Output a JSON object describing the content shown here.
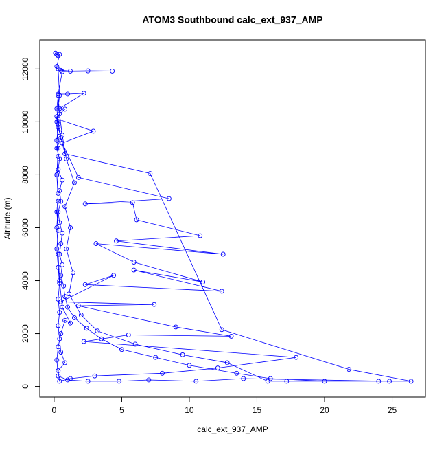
{
  "chart_data": {
    "type": "line",
    "markers": true,
    "title": "ATOM3 Southbound calc_ext_937_AMP",
    "x_label": "calc_ext_937_AMP",
    "y_label": "Altitude (m)",
    "color": "#0000ff",
    "xlim": [
      -1.06,
      27.46
    ],
    "ylim": [
      -400,
      13100
    ],
    "xticks": [
      0,
      5,
      10,
      15,
      20,
      25
    ],
    "yticks": [
      0,
      2000,
      4000,
      6000,
      8000,
      10000,
      12000
    ],
    "x": [
      0.2,
      0.3,
      0.1,
      0.4,
      0.2,
      0.5,
      1.2,
      2.5,
      4.3,
      0.6,
      0.3,
      1.0,
      2.2,
      0.4,
      0.8,
      0.2,
      0.3,
      0.5,
      0.2,
      0.4,
      0.3,
      0.6,
      0.4,
      0.5,
      0.3,
      0.4,
      0.6,
      0.5,
      0.4,
      0.6,
      0.5,
      0.7,
      0.8,
      1.0,
      1.5,
      2.4,
      3.5,
      5.0,
      7.5,
      10.0,
      13.5,
      16.0,
      20.0,
      26.4,
      21.8,
      12.4,
      7.1,
      0.8,
      0.4,
      0.3,
      2.9,
      0.6,
      1.8,
      8.5,
      2.3,
      5.8,
      6.1,
      10.8,
      4.6,
      12.5,
      3.1,
      5.9,
      11.0,
      5.9,
      12.4,
      2.3,
      4.4,
      0.5,
      7.4,
      1.8,
      9.0,
      13.1,
      5.5,
      2.2,
      17.9,
      12.1,
      8.0,
      3.0,
      1.2,
      0.4,
      0.3,
      0.8,
      0.5,
      0.4,
      0.3,
      0.4,
      0.3,
      0.4,
      0.3,
      0.2,
      0.3,
      0.2,
      0.3,
      0.2,
      0.3,
      0.2,
      0.3,
      0.2,
      0.3,
      0.4,
      0.6,
      0.9,
      1.5,
      0.8,
      1.2,
      0.9,
      1.4,
      1.1,
      2.0,
      3.2,
      6.0,
      9.5,
      12.8,
      15.8,
      17.2,
      24.0,
      24.8,
      14.0,
      10.5,
      7.0,
      4.8,
      2.5,
      1.0,
      0.3,
      0.2,
      0.3,
      0.5,
      0.8,
      1.2,
      0.6,
      0.4,
      0.3,
      0.2,
      0.3,
      0.2,
      0.3,
      0.2,
      0.4,
      0.3
    ],
    "values": [
      12550,
      12500,
      12600,
      12550,
      12100,
      11950,
      11920,
      11930,
      11920,
      11900,
      11050,
      11050,
      11080,
      10500,
      10480,
      10200,
      9800,
      9400,
      9000,
      8600,
      8200,
      7800,
      7400,
      7000,
      6600,
      6200,
      5800,
      5400,
      5000,
      4600,
      4200,
      3800,
      3400,
      3000,
      2600,
      2200,
      1800,
      1400,
      1100,
      800,
      500,
      300,
      200,
      200,
      650,
      2150,
      8050,
      8800,
      9600,
      10100,
      9650,
      9200,
      7900,
      7100,
      6900,
      6950,
      6300,
      5700,
      5500,
      5000,
      5400,
      4700,
      3950,
      4400,
      3600,
      3850,
      4200,
      3200,
      3100,
      3050,
      2250,
      1900,
      1950,
      1700,
      1100,
      700,
      500,
      400,
      300,
      200,
      600,
      900,
      1300,
      1800,
      2300,
      2800,
      3300,
      3900,
      4500,
      5200,
      5900,
      6600,
      7300,
      8000,
      8700,
      9300,
      9900,
      10500,
      11000,
      10300,
      9500,
      8600,
      7700,
      6800,
      6000,
      5200,
      4300,
      3500,
      2700,
      2100,
      1600,
      1200,
      900,
      200,
      200,
      200,
      200,
      300,
      200,
      250,
      200,
      200,
      250,
      400,
      1000,
      1500,
      2000,
      2500,
      2400,
      3000,
      4000,
      5000,
      6000,
      7000,
      8000,
      9000,
      10000,
      11000,
      12000
    ]
  }
}
